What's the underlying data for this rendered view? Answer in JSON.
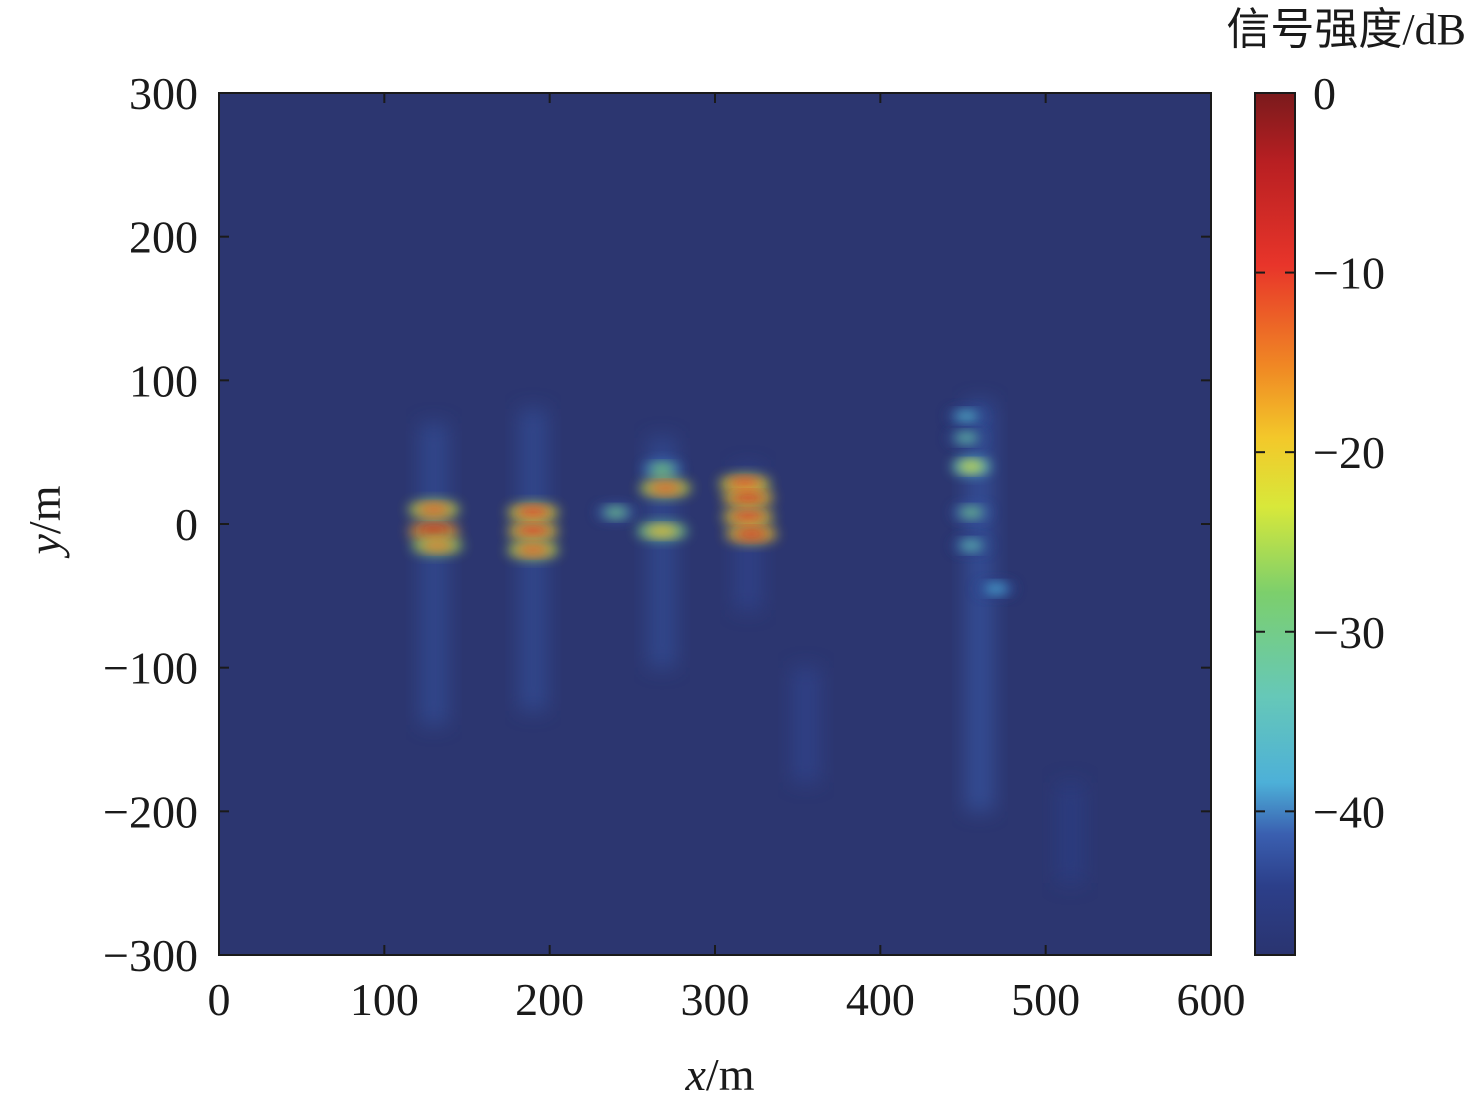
{
  "chart_data": {
    "type": "heatmap",
    "title": "",
    "xlabel": {
      "var": "x",
      "unit": "/m"
    },
    "ylabel": {
      "var": "y",
      "unit": "/m"
    },
    "xlim": [
      0,
      600
    ],
    "ylim": [
      -300,
      300
    ],
    "xticks": [
      0,
      100,
      200,
      300,
      400,
      500,
      600
    ],
    "yticks": [
      -300,
      -200,
      -100,
      0,
      100,
      200,
      300
    ],
    "xtick_labels": [
      "0",
      "100",
      "200",
      "300",
      "400",
      "500",
      "600"
    ],
    "ytick_labels": [
      "−300",
      "−200",
      "−100",
      "0",
      "100",
      "200",
      "300"
    ],
    "colorbar": {
      "title": "信号强度/dB",
      "range": [
        -48,
        0
      ],
      "ticks": [
        0,
        -10,
        -20,
        -30,
        -40
      ],
      "tick_labels": [
        "0",
        "−10",
        "−20",
        "−30",
        "−40"
      ],
      "colormap": "jet"
    },
    "background_level_db": -48,
    "targets": [
      {
        "x": 130,
        "y": 10,
        "level_db": -12
      },
      {
        "x": 130,
        "y": -5,
        "level_db": -5
      },
      {
        "x": 132,
        "y": -15,
        "level_db": -14
      },
      {
        "x": 190,
        "y": 8,
        "level_db": -10
      },
      {
        "x": 190,
        "y": -5,
        "level_db": -9
      },
      {
        "x": 190,
        "y": -18,
        "level_db": -12
      },
      {
        "x": 240,
        "y": 8,
        "level_db": -30
      },
      {
        "x": 268,
        "y": 38,
        "level_db": -28
      },
      {
        "x": 270,
        "y": 25,
        "level_db": -12
      },
      {
        "x": 268,
        "y": -5,
        "level_db": -18
      },
      {
        "x": 318,
        "y": 28,
        "level_db": -10
      },
      {
        "x": 320,
        "y": 18,
        "level_db": -8
      },
      {
        "x": 320,
        "y": 5,
        "level_db": -9
      },
      {
        "x": 322,
        "y": -7,
        "level_db": -8
      },
      {
        "x": 452,
        "y": 75,
        "level_db": -36
      },
      {
        "x": 452,
        "y": 60,
        "level_db": -32
      },
      {
        "x": 455,
        "y": 40,
        "level_db": -22
      },
      {
        "x": 455,
        "y": 8,
        "level_db": -30
      },
      {
        "x": 455,
        "y": -15,
        "level_db": -33
      },
      {
        "x": 470,
        "y": -45,
        "level_db": -38
      }
    ],
    "streaks": [
      {
        "x": 130,
        "y_top": 70,
        "y_bottom": -140,
        "level_db": -42
      },
      {
        "x": 190,
        "y_top": 80,
        "y_bottom": -130,
        "level_db": -42
      },
      {
        "x": 268,
        "y_top": 60,
        "y_bottom": -100,
        "level_db": -42
      },
      {
        "x": 320,
        "y_top": 40,
        "y_bottom": -60,
        "level_db": -43
      },
      {
        "x": 355,
        "y_top": -100,
        "y_bottom": -180,
        "level_db": -43
      },
      {
        "x": 460,
        "y_top": 85,
        "y_bottom": -200,
        "level_db": -41
      },
      {
        "x": 515,
        "y_top": -180,
        "y_bottom": -250,
        "level_db": -44
      }
    ]
  }
}
